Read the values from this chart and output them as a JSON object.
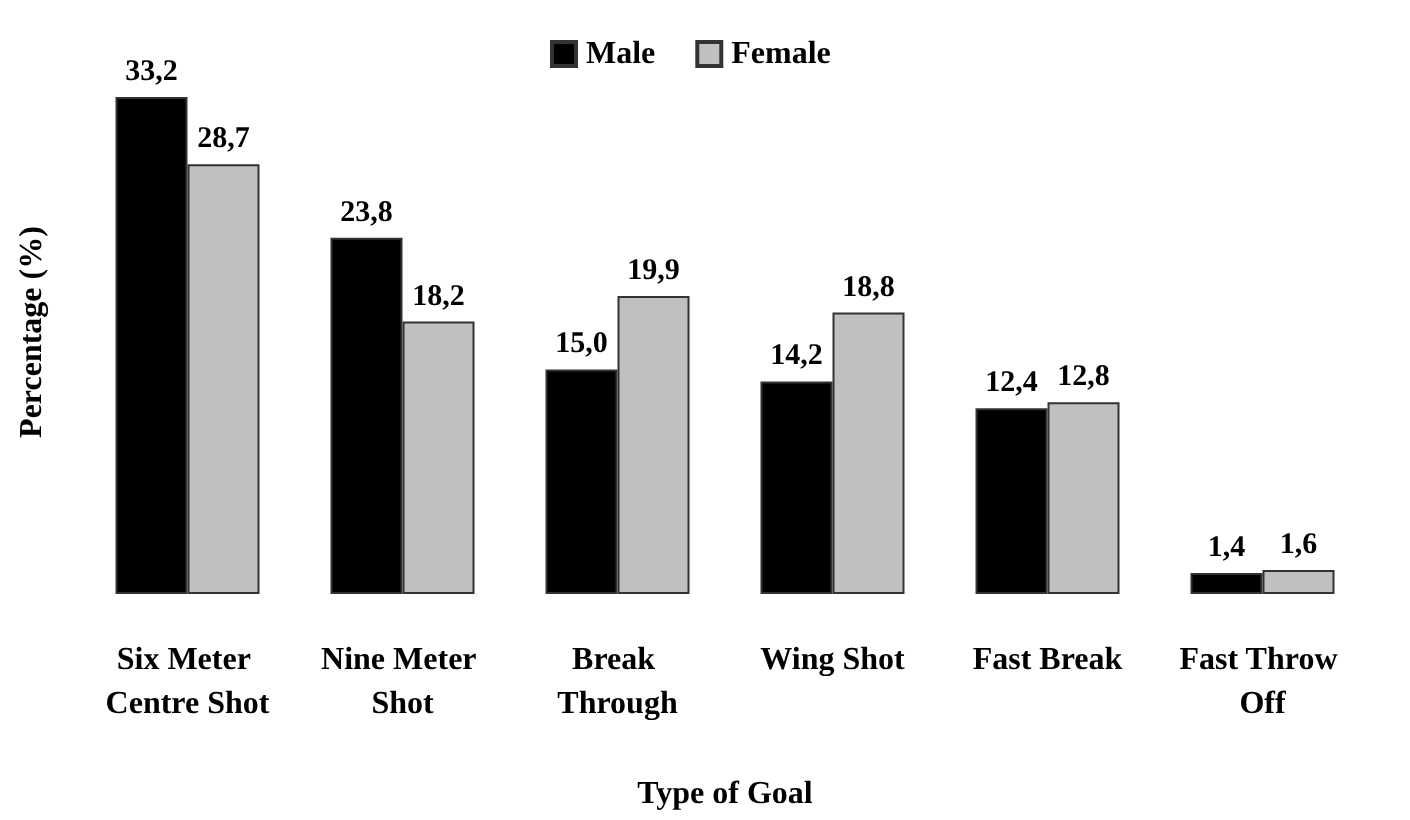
{
  "chart_data": {
    "type": "bar",
    "xlabel": "Type of Goal",
    "ylabel": "Percentage (%)",
    "categories": [
      "Six Meter Centre Shot",
      "Nine Meter Shot",
      "Break Through",
      "Wing Shot",
      "Fast Break",
      "Fast Throw Off"
    ],
    "series": [
      {
        "name": "Male",
        "color": "#000000",
        "values": [
          33.2,
          23.8,
          15.0,
          14.2,
          12.4,
          1.4
        ],
        "value_labels": [
          "33,2",
          "23,8",
          "15,0",
          "14,2",
          "12,4",
          "1,4"
        ]
      },
      {
        "name": "Female",
        "color": "#c0c0c0",
        "values": [
          28.7,
          18.2,
          19.9,
          18.8,
          12.8,
          1.6
        ],
        "value_labels": [
          "28,7",
          "18,2",
          "19,9",
          "18,8",
          "12,8",
          "1,6"
        ]
      }
    ],
    "legend": "top",
    "grid": false
  }
}
